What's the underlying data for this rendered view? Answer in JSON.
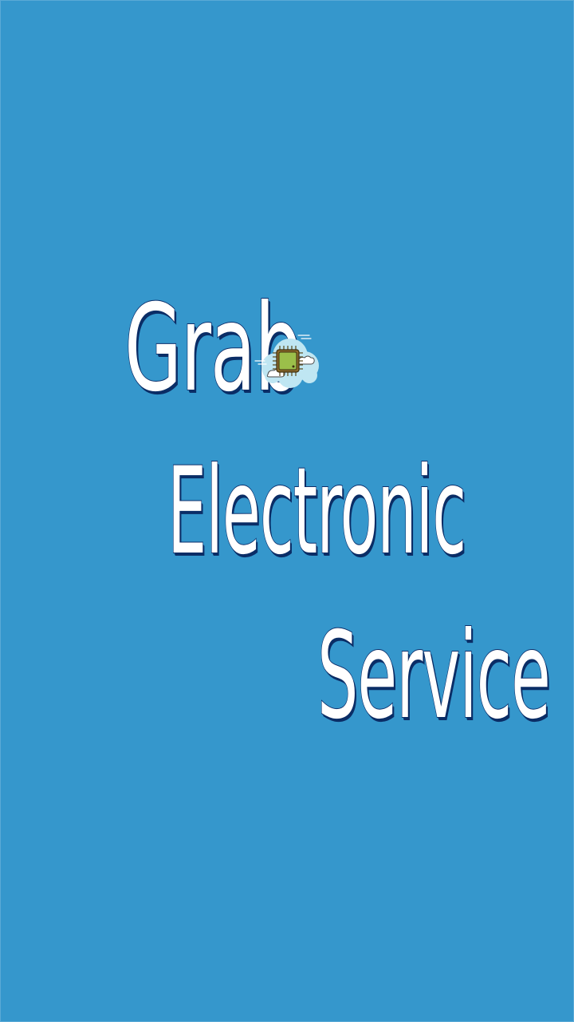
{
  "splash": {
    "line1": "Grab",
    "line2": "Electronic",
    "line3": "Service",
    "logo_icon": "cloud-chip-icon"
  },
  "colors": {
    "background": "#3597cc",
    "text_fill": "#ffffff",
    "text_outline": "#0d2f6b",
    "cloud": "#bfe6f2",
    "chip": "#9bbf4a"
  }
}
